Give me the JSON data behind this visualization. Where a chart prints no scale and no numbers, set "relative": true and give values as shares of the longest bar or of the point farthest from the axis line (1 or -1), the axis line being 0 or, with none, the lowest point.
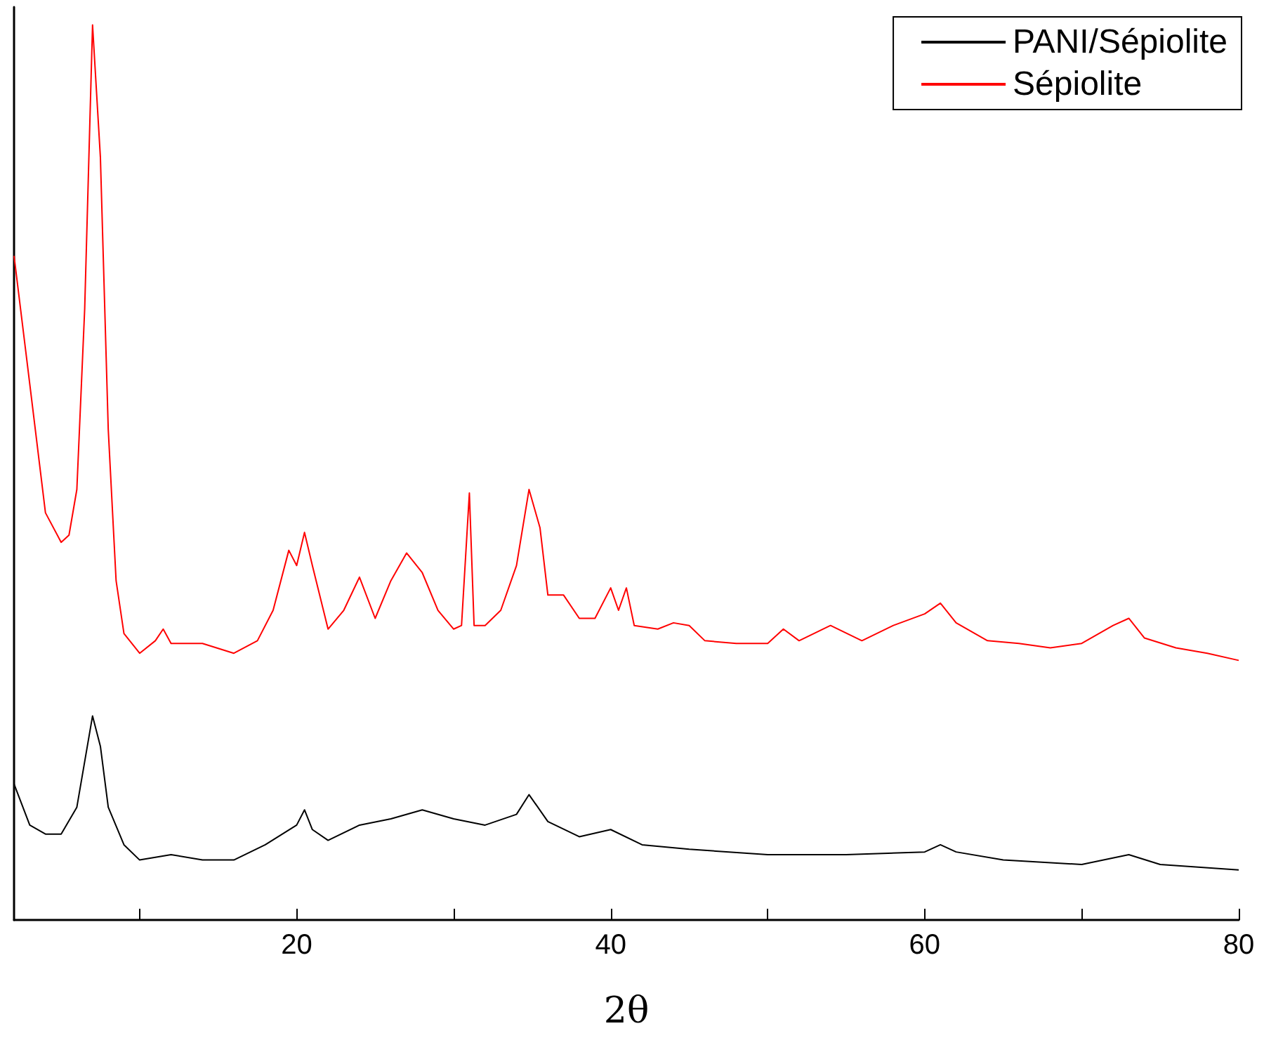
{
  "chart_data": {
    "type": "line",
    "xlabel": "2θ",
    "relative": true,
    "xlim": [
      2,
      80
    ],
    "xticks": [
      {
        "value": 10,
        "label": null
      },
      20,
      {
        "value": 30,
        "label": null
      },
      40,
      {
        "value": 50,
        "label": null
      },
      60,
      {
        "value": 70,
        "label": null
      },
      80
    ],
    "legend": "top right",
    "grid": false,
    "marker": "none",
    "line_style": "solid",
    "series": [
      {
        "name": "PANI/Sépiolite",
        "color": "#000000",
        "x": [
          2,
          3,
          4,
          5,
          6,
          6.5,
          7,
          7.5,
          8,
          9,
          10,
          12,
          14,
          16,
          18,
          20,
          20.5,
          21,
          22,
          24,
          26,
          28,
          30,
          32,
          34,
          34.8,
          36,
          38,
          40,
          42,
          45,
          50,
          55,
          60,
          61,
          62,
          65,
          70,
          73,
          75,
          80
        ],
        "values": [
          0.152,
          0.106,
          0.096,
          0.096,
          0.126,
          0.177,
          0.228,
          0.194,
          0.126,
          0.084,
          0.067,
          0.073,
          0.067,
          0.067,
          0.084,
          0.106,
          0.123,
          0.101,
          0.089,
          0.106,
          0.113,
          0.123,
          0.113,
          0.106,
          0.118,
          0.14,
          0.11,
          0.093,
          0.101,
          0.084,
          0.079,
          0.073,
          0.073,
          0.076,
          0.084,
          0.076,
          0.067,
          0.062,
          0.073,
          0.062,
          0.056
        ]
      },
      {
        "name": "Sépiolite",
        "color": "#ff0000",
        "x": [
          2,
          3,
          4,
          5,
          5.5,
          6,
          6.5,
          7,
          7.5,
          8,
          8.5,
          9,
          10,
          11,
          11.5,
          12,
          14,
          16,
          17.5,
          18.5,
          19.5,
          20,
          20.5,
          21,
          22,
          23,
          24,
          25,
          26,
          27,
          28,
          29,
          30,
          30.5,
          31,
          31.3,
          32,
          33,
          34,
          34.8,
          35.5,
          36,
          37,
          38,
          39,
          40,
          40.5,
          41,
          41.5,
          43,
          44,
          45,
          46,
          48,
          50,
          51,
          52,
          54,
          56,
          58,
          60,
          61,
          62,
          64,
          66,
          68,
          70,
          72,
          73,
          74,
          76,
          78,
          80
        ],
        "values": [
          0.742,
          0.599,
          0.455,
          0.422,
          0.43,
          0.481,
          0.683,
          1,
          0.852,
          0.548,
          0.379,
          0.32,
          0.298,
          0.312,
          0.325,
          0.309,
          0.309,
          0.298,
          0.312,
          0.346,
          0.413,
          0.396,
          0.433,
          0.396,
          0.325,
          0.346,
          0.383,
          0.337,
          0.379,
          0.41,
          0.388,
          0.346,
          0.325,
          0.329,
          0.477,
          0.329,
          0.329,
          0.346,
          0.396,
          0.481,
          0.438,
          0.363,
          0.363,
          0.337,
          0.337,
          0.371,
          0.346,
          0.371,
          0.329,
          0.325,
          0.332,
          0.329,
          0.312,
          0.309,
          0.309,
          0.325,
          0.312,
          0.329,
          0.312,
          0.329,
          0.342,
          0.354,
          0.332,
          0.312,
          0.309,
          0.304,
          0.309,
          0.329,
          0.337,
          0.315,
          0.304,
          0.298,
          0.29
        ]
      }
    ]
  }
}
